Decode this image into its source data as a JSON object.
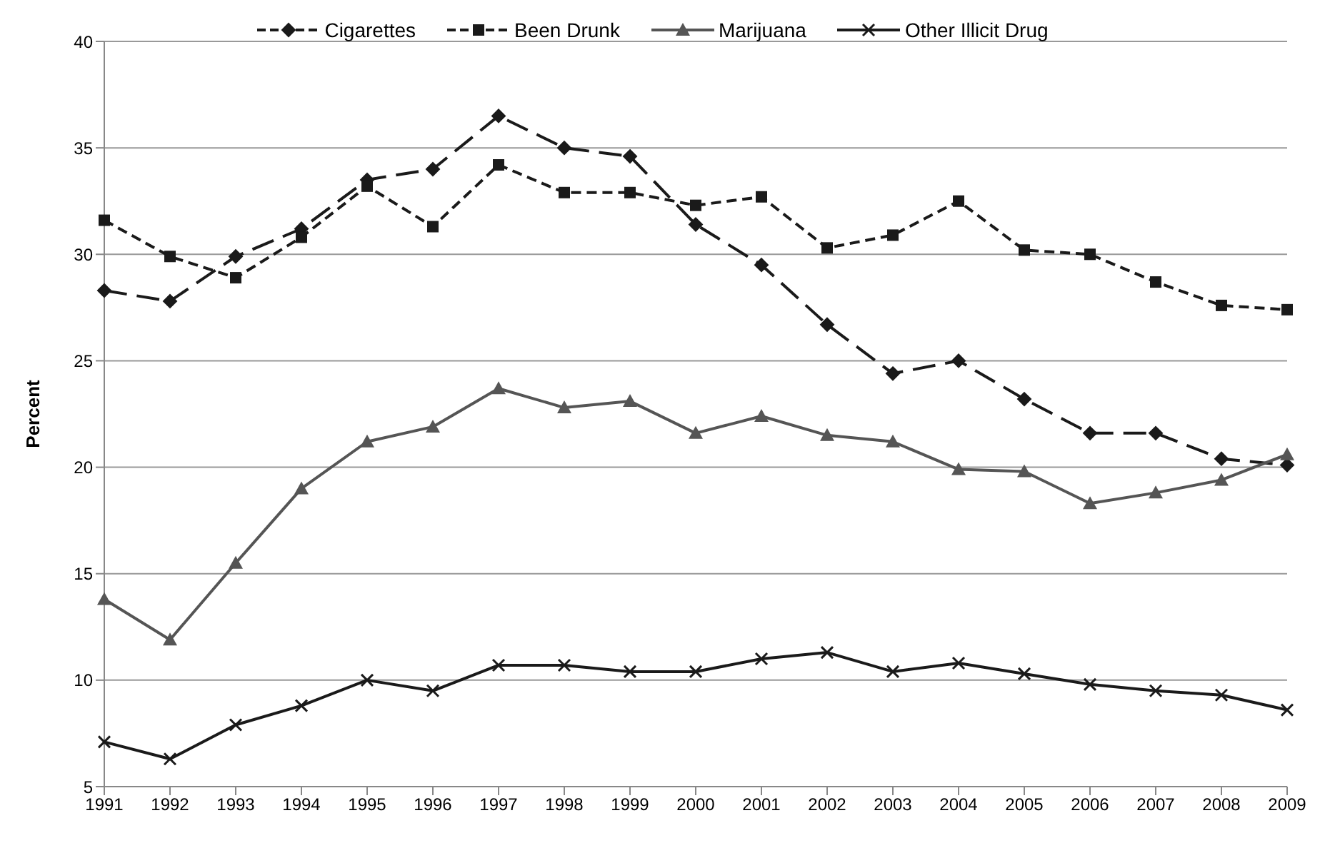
{
  "chart_data": {
    "type": "line",
    "ylabel": "Percent",
    "categories": [
      "1991",
      "1992",
      "1993",
      "1994",
      "1995",
      "1996",
      "1997",
      "1998",
      "1999",
      "2000",
      "2001",
      "2002",
      "2003",
      "2004",
      "2005",
      "2006",
      "2007",
      "2008",
      "2009"
    ],
    "ylim": [
      5,
      40
    ],
    "yticks": [
      5,
      10,
      15,
      20,
      25,
      30,
      35,
      40
    ],
    "grid": "y",
    "legend": "top",
    "series": [
      {
        "name": "Cigarettes",
        "color": "#1a1a1a",
        "marker": "diamond",
        "line_style": "dashed",
        "values": [
          28.3,
          27.8,
          29.9,
          31.2,
          33.5,
          34.0,
          36.5,
          35.0,
          34.6,
          31.4,
          29.5,
          26.7,
          24.4,
          25.0,
          23.2,
          21.6,
          21.6,
          20.4,
          20.1
        ]
      },
      {
        "name": "Been Drunk",
        "color": "#1a1a1a",
        "marker": "square",
        "line_style": "dashed",
        "values": [
          31.6,
          29.9,
          28.9,
          30.8,
          33.2,
          31.3,
          34.2,
          32.9,
          32.9,
          32.3,
          32.7,
          30.3,
          30.9,
          32.5,
          30.2,
          30.0,
          28.7,
          27.6,
          27.4
        ]
      },
      {
        "name": "Marijuana",
        "color": "#555555",
        "marker": "triangle",
        "line_style": "solid",
        "values": [
          13.8,
          11.9,
          15.5,
          19.0,
          21.2,
          21.9,
          23.7,
          22.8,
          23.1,
          21.6,
          22.4,
          21.5,
          21.2,
          19.9,
          19.8,
          18.3,
          18.8,
          19.4,
          20.6
        ]
      },
      {
        "name": "Other Illicit Drug",
        "color": "#1a1a1a",
        "marker": "cross",
        "line_style": "solid",
        "values": [
          7.1,
          6.3,
          7.9,
          8.8,
          10.0,
          9.5,
          10.7,
          10.7,
          10.4,
          10.4,
          11.0,
          11.3,
          10.4,
          10.8,
          10.3,
          9.8,
          9.5,
          9.3,
          8.6
        ]
      }
    ]
  }
}
